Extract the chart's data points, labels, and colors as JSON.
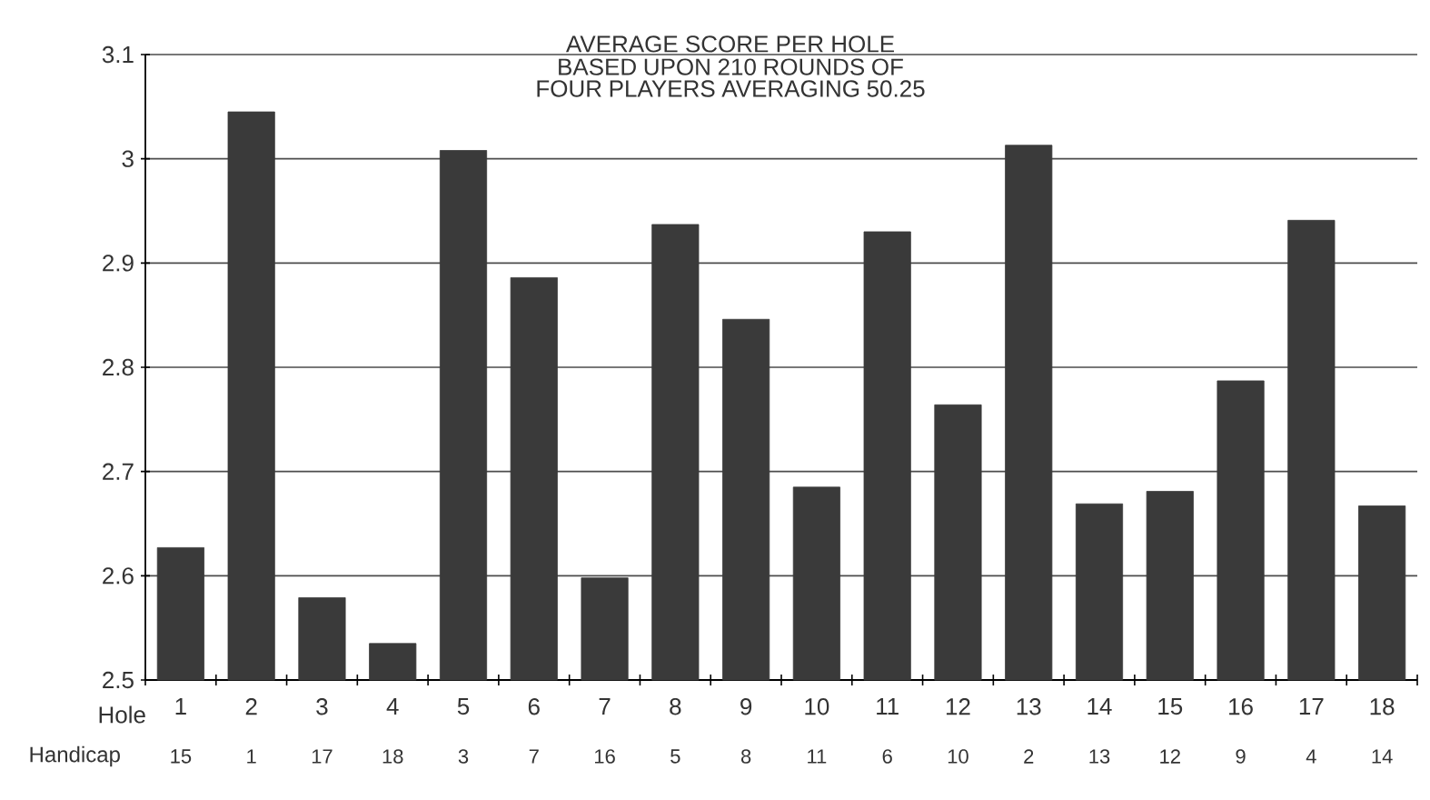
{
  "chart_data": {
    "type": "bar",
    "title": "AVERAGE SCORE PER HOLE",
    "subtitle": "BASED UPON 210 ROUNDS OF FOUR PLAYERS AVERAGING 50.25",
    "xlabel": "Hole",
    "categories": [
      "1",
      "2",
      "3",
      "4",
      "5",
      "6",
      "7",
      "8",
      "9",
      "10",
      "11",
      "12",
      "13",
      "14",
      "15",
      "16",
      "17",
      "18"
    ],
    "values": [
      2.627,
      3.045,
      2.579,
      2.535,
      3.008,
      2.886,
      2.598,
      2.937,
      2.846,
      2.685,
      2.93,
      2.764,
      3.013,
      2.669,
      2.681,
      2.787,
      2.941,
      2.667
    ],
    "color": "#3a3a3a",
    "ylim": [
      2.5,
      3.1
    ],
    "yticks": [
      2.5,
      2.6,
      2.7,
      2.8,
      2.9,
      3,
      3.1
    ],
    "grid": "y",
    "annotations": [
      "Handicap",
      "15",
      "1",
      "17",
      "18",
      "3",
      "7",
      "16",
      "5",
      "8",
      "11",
      "6",
      "10",
      "2",
      "13",
      "12",
      "9",
      "4",
      "14"
    ]
  }
}
